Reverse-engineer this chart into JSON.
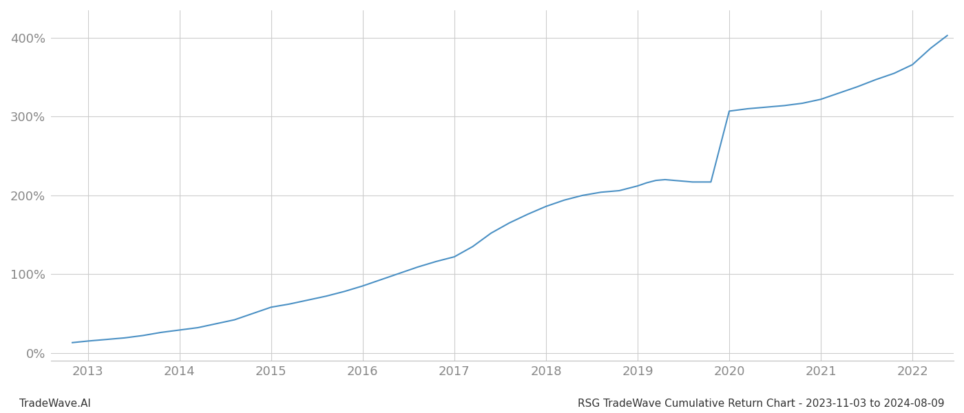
{
  "title_right": "RSG TradeWave Cumulative Return Chart - 2023-11-03 to 2024-08-09",
  "title_left": "TradeWave.AI",
  "line_color": "#4a90c4",
  "background_color": "#ffffff",
  "grid_color": "#cccccc",
  "x_tick_color": "#888888",
  "y_tick_color": "#888888",
  "xlim": [
    2012.6,
    2022.45
  ],
  "ylim": [
    -0.1,
    4.35
  ],
  "x_ticks": [
    2013,
    2014,
    2015,
    2016,
    2017,
    2018,
    2019,
    2020,
    2021,
    2022
  ],
  "y_ticks": [
    0.0,
    1.0,
    2.0,
    3.0,
    4.0
  ],
  "y_tick_labels": [
    "0%",
    "100%",
    "200%",
    "300%",
    "400%"
  ],
  "data_x": [
    2012.83,
    2013.0,
    2013.2,
    2013.4,
    2013.6,
    2013.8,
    2014.0,
    2014.2,
    2014.4,
    2014.6,
    2014.8,
    2015.0,
    2015.2,
    2015.4,
    2015.6,
    2015.8,
    2016.0,
    2016.2,
    2016.4,
    2016.6,
    2016.8,
    2017.0,
    2017.2,
    2017.4,
    2017.6,
    2017.8,
    2018.0,
    2018.1,
    2018.2,
    2018.3,
    2018.4,
    2018.5,
    2018.6,
    2018.8,
    2019.0,
    2019.1,
    2019.2,
    2019.3,
    2019.4,
    2019.5,
    2019.6,
    2019.8,
    2020.0,
    2020.2,
    2020.4,
    2020.6,
    2020.8,
    2021.0,
    2021.2,
    2021.4,
    2021.6,
    2021.8,
    2022.0,
    2022.2,
    2022.38
  ],
  "data_y": [
    0.13,
    0.15,
    0.17,
    0.19,
    0.22,
    0.26,
    0.29,
    0.32,
    0.37,
    0.42,
    0.5,
    0.58,
    0.62,
    0.67,
    0.72,
    0.78,
    0.85,
    0.93,
    1.01,
    1.09,
    1.16,
    1.22,
    1.35,
    1.52,
    1.65,
    1.76,
    1.86,
    1.9,
    1.94,
    1.97,
    2.0,
    2.02,
    2.04,
    2.06,
    2.12,
    2.16,
    2.19,
    2.2,
    2.19,
    2.18,
    2.17,
    2.17,
    3.07,
    3.1,
    3.12,
    3.14,
    3.17,
    3.22,
    3.3,
    3.38,
    3.47,
    3.55,
    3.66,
    3.87,
    4.03
  ],
  "line_width": 1.5,
  "figsize": [
    14.0,
    6.0
  ],
  "dpi": 100
}
